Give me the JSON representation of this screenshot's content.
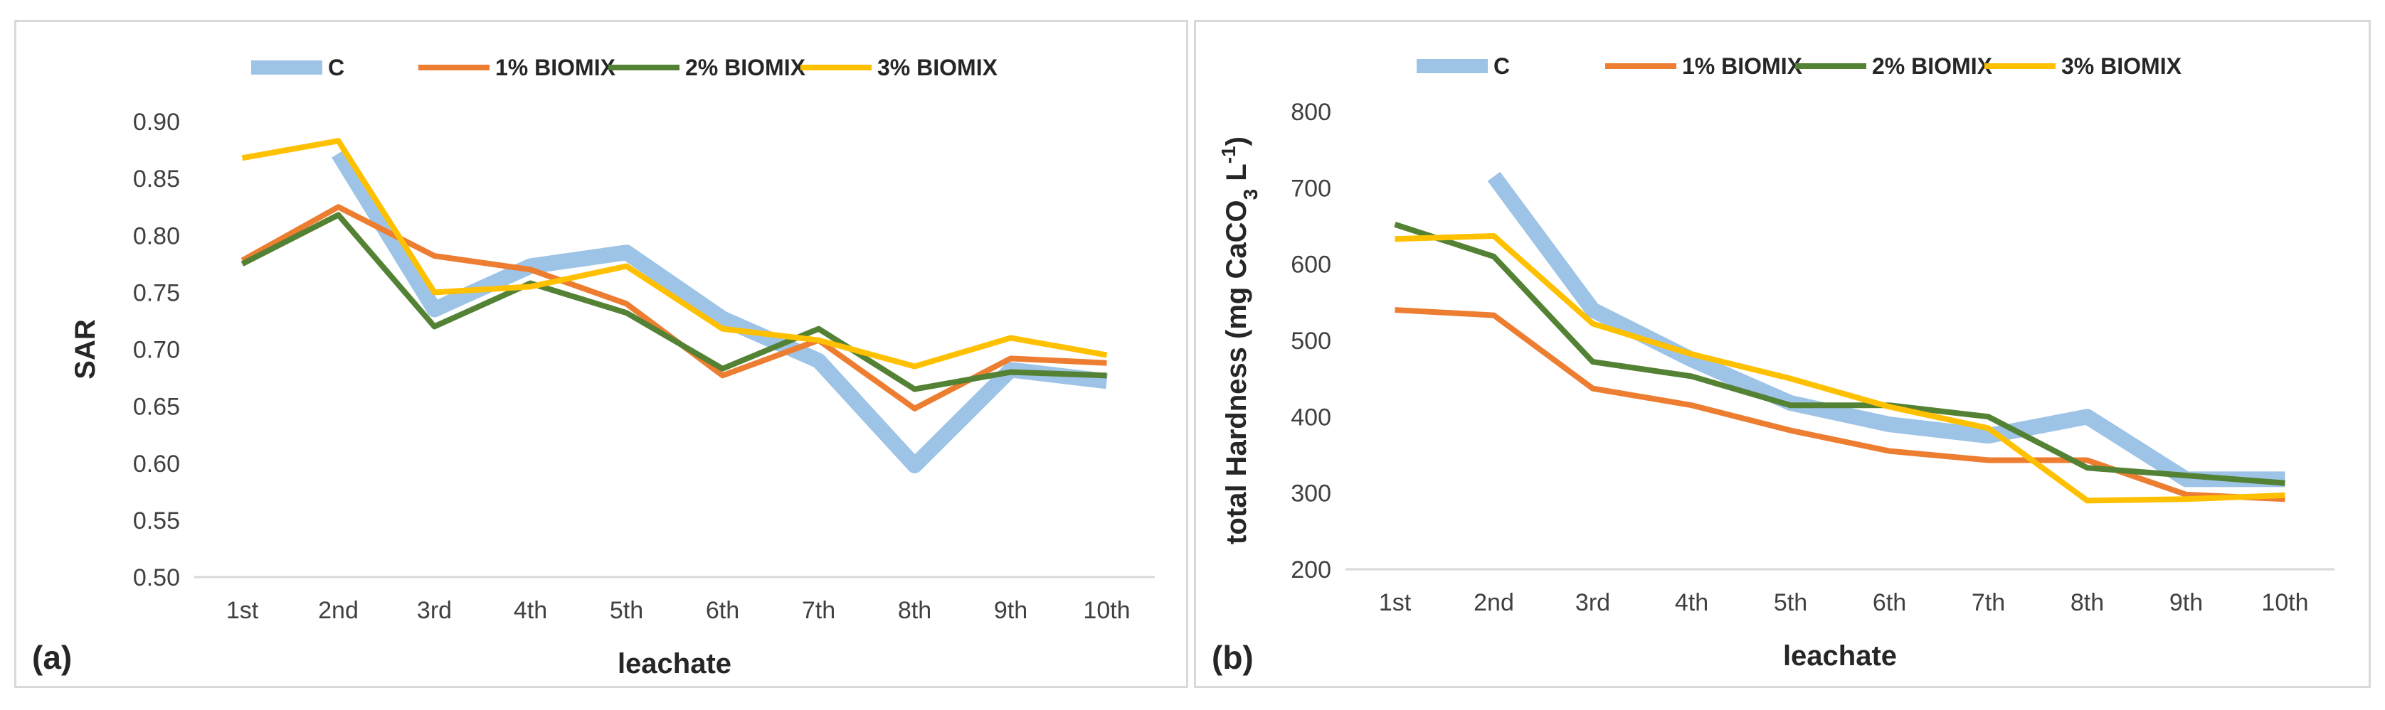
{
  "figure": {
    "colors": {
      "C": "#9dc3e6",
      "1% BIOMIX": "#ed7d31",
      "2% BIOMIX": "#548235",
      "3% BIOMIX": "#ffc000"
    }
  },
  "chart_data": [
    {
      "type": "line",
      "panel_label": "(a)",
      "xlabel": "leachate",
      "ylabel": "SAR",
      "categories": [
        "1st",
        "2nd",
        "3rd",
        "4th",
        "5th",
        "6th",
        "7th",
        "8th",
        "9th",
        "10th"
      ],
      "ylim": [
        0.5,
        0.9
      ],
      "yticks": [
        "0.50",
        "0.55",
        "0.60",
        "0.65",
        "0.70",
        "0.75",
        "0.80",
        "0.85",
        "0.90"
      ],
      "legend_position": "top",
      "grid": false,
      "series": [
        {
          "name": "C",
          "color": "#9dc3e6",
          "values": [
            null,
            0.872,
            0.735,
            0.773,
            0.785,
            0.727,
            0.69,
            0.598,
            0.682,
            0.672
          ]
        },
        {
          "name": "1% BIOMIX",
          "color": "#ed7d31",
          "values": [
            0.778,
            0.825,
            0.782,
            0.77,
            0.74,
            0.677,
            0.708,
            0.648,
            0.692,
            0.688
          ]
        },
        {
          "name": "2% BIOMIX",
          "color": "#548235",
          "values": [
            0.775,
            0.818,
            0.72,
            0.758,
            0.732,
            0.683,
            0.718,
            0.665,
            0.68,
            0.677
          ]
        },
        {
          "name": "3% BIOMIX",
          "color": "#ffc000",
          "values": [
            0.868,
            0.883,
            0.75,
            0.755,
            0.773,
            0.718,
            0.708,
            0.685,
            0.71,
            0.695
          ]
        }
      ]
    },
    {
      "type": "line",
      "panel_label": "(b)",
      "xlabel": "leachate",
      "ylabel_parts": [
        "total Hardness (mg CaCO",
        "3",
        " L",
        "-1",
        ")"
      ],
      "categories": [
        "1st",
        "2nd",
        "3rd",
        "4th",
        "5th",
        "6th",
        "7th",
        "8th",
        "9th",
        "10th"
      ],
      "ylim": [
        200,
        800
      ],
      "yticks": [
        "200",
        "300",
        "400",
        "500",
        "600",
        "700",
        "800"
      ],
      "legend_position": "top",
      "grid": false,
      "series": [
        {
          "name": "C",
          "color": "#9dc3e6",
          "values": [
            null,
            715,
            540,
            475,
            418,
            390,
            375,
            400,
            318,
            318
          ]
        },
        {
          "name": "1% BIOMIX",
          "color": "#ed7d31",
          "values": [
            540,
            533,
            437,
            415,
            382,
            355,
            343,
            343,
            298,
            292
          ]
        },
        {
          "name": "2% BIOMIX",
          "color": "#548235",
          "values": [
            652,
            610,
            472,
            453,
            415,
            415,
            400,
            333,
            323,
            313
          ]
        },
        {
          "name": "3% BIOMIX",
          "color": "#ffc000",
          "values": [
            633,
            637,
            522,
            482,
            450,
            413,
            385,
            290,
            292,
            297
          ]
        }
      ]
    }
  ]
}
